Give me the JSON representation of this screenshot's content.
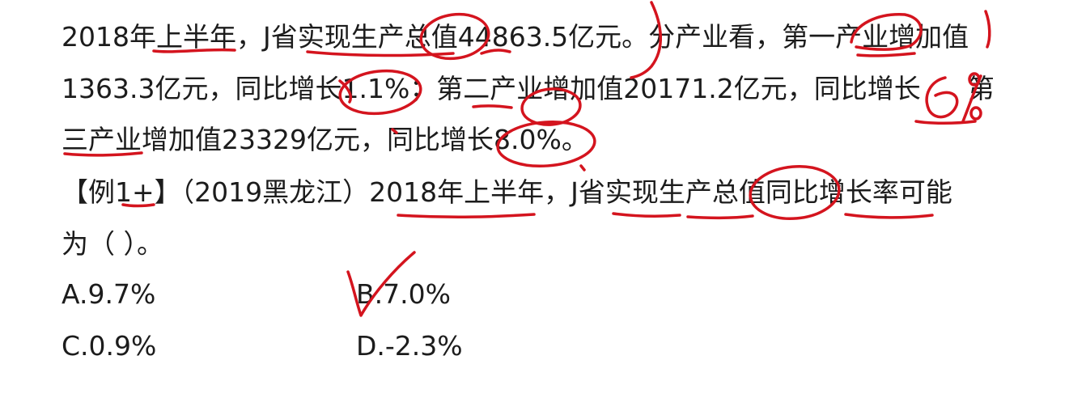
{
  "passage": {
    "line1": "2018年上半年，J省实现生产总值44863.5亿元。分产业看，第一产业增加值",
    "line2": "1363.3亿元，同比增长1.1%；第二产业增加值20171.2亿元，同比增长",
    "line2_tail": "第",
    "line3": "三产业增加值23329亿元，同比增长8.0%。"
  },
  "question": {
    "stem_line1": "【例1+】（2019黑龙江）2018年上半年，J省实现生产总值同比增长率可能",
    "stem_line2": "为（    ）。"
  },
  "options": {
    "a": "A.9.7%",
    "b": "B.7.0%",
    "c": "C.0.9%",
    "d": "D.-2.3%"
  },
  "annotations": {
    "handwritten_note": "6%",
    "ink_color": "#d4141e"
  }
}
